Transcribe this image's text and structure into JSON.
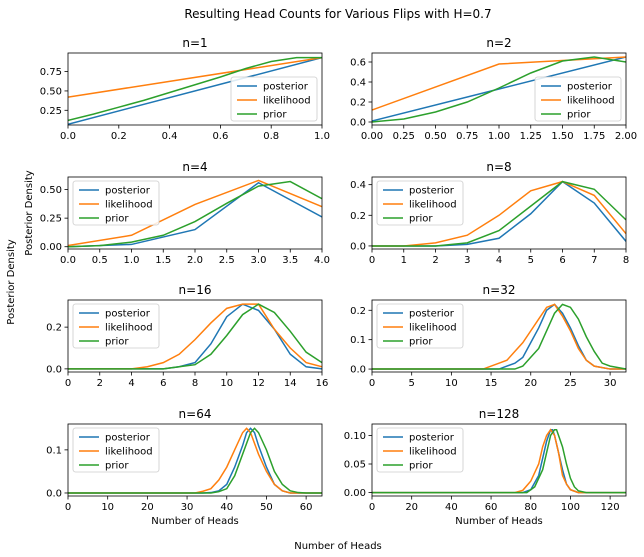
{
  "figure": {
    "suptitle": "Resulting Head Counts for Various Flips with H=0.7",
    "supxlabel": "Number of Heads",
    "supylabel": "Posterior Density"
  },
  "colors": {
    "posterior": "#1f77b4",
    "likelihood": "#ff7f0e",
    "prior": "#2ca02c"
  },
  "chart_data": [
    {
      "type": "line",
      "title": "n=1",
      "xlabel": "",
      "ylabel": "",
      "xlim": [
        0,
        1
      ],
      "ylim": [
        0.06,
        0.99
      ],
      "xticks": [
        0,
        0.2,
        0.4,
        0.6,
        0.8,
        1
      ],
      "xtick_labels": [
        "0.0",
        "0.2",
        "0.4",
        "0.6",
        "0.8",
        "1.0"
      ],
      "yticks": [
        0.25,
        0.5,
        0.75
      ],
      "ytick_labels": [
        "0.25",
        "0.50",
        "0.75"
      ],
      "legend": "lower-right",
      "series": [
        {
          "name": "posterior",
          "x": [
            0,
            1
          ],
          "y": [
            0.07,
            0.93
          ]
        },
        {
          "name": "likelihood",
          "x": [
            0,
            1
          ],
          "y": [
            0.42,
            0.93
          ]
        },
        {
          "name": "prior",
          "x": [
            0,
            0.1,
            0.2,
            0.3,
            0.4,
            0.5,
            0.6,
            0.7,
            0.8,
            0.9,
            1
          ],
          "y": [
            0.12,
            0.2,
            0.29,
            0.38,
            0.48,
            0.58,
            0.68,
            0.79,
            0.88,
            0.93,
            0.93
          ]
        }
      ]
    },
    {
      "type": "line",
      "title": "n=2",
      "xlabel": "",
      "ylabel": "",
      "xlim": [
        0,
        2
      ],
      "ylim": [
        -0.03,
        0.69
      ],
      "xticks": [
        0,
        0.25,
        0.5,
        0.75,
        1,
        1.25,
        1.5,
        1.75,
        2
      ],
      "xtick_labels": [
        "0.00",
        "0.25",
        "0.50",
        "0.75",
        "1.00",
        "1.25",
        "1.50",
        "1.75",
        "2.00"
      ],
      "yticks": [
        0,
        0.2,
        0.4,
        0.6
      ],
      "ytick_labels": [
        "0.0",
        "0.2",
        "0.4",
        "0.6"
      ],
      "legend": "lower-right",
      "series": [
        {
          "name": "posterior",
          "x": [
            0,
            1,
            2
          ],
          "y": [
            0.01,
            0.33,
            0.65
          ]
        },
        {
          "name": "likelihood",
          "x": [
            0,
            1,
            2
          ],
          "y": [
            0.12,
            0.58,
            0.65
          ]
        },
        {
          "name": "prior",
          "x": [
            0,
            0.25,
            0.5,
            0.75,
            1,
            1.25,
            1.5,
            1.75,
            2
          ],
          "y": [
            0.0,
            0.03,
            0.1,
            0.2,
            0.34,
            0.49,
            0.61,
            0.65,
            0.6
          ]
        }
      ]
    },
    {
      "type": "line",
      "title": "n=4",
      "xlabel": "",
      "ylabel": "Posterior Density",
      "xlim": [
        0,
        4
      ],
      "ylim": [
        -0.02,
        0.61
      ],
      "xticks": [
        0,
        0.5,
        1,
        1.5,
        2,
        2.5,
        3,
        3.5,
        4
      ],
      "xtick_labels": [
        "0.0",
        "0.5",
        "1.0",
        "1.5",
        "2.0",
        "2.5",
        "3.0",
        "3.5",
        "4.0"
      ],
      "yticks": [
        0,
        0.25,
        0.5
      ],
      "ytick_labels": [
        "0.00",
        "0.25",
        "0.50"
      ],
      "legend": "upper-left",
      "series": [
        {
          "name": "posterior",
          "x": [
            0,
            1,
            2,
            3,
            4
          ],
          "y": [
            0.0,
            0.02,
            0.15,
            0.56,
            0.26
          ]
        },
        {
          "name": "likelihood",
          "x": [
            0,
            1,
            2,
            3,
            4
          ],
          "y": [
            0.01,
            0.1,
            0.37,
            0.58,
            0.35
          ]
        },
        {
          "name": "prior",
          "x": [
            0,
            0.5,
            1,
            1.5,
            2,
            2.5,
            3,
            3.5,
            4
          ],
          "y": [
            0.0,
            0.01,
            0.04,
            0.1,
            0.22,
            0.38,
            0.53,
            0.57,
            0.42
          ]
        }
      ]
    },
    {
      "type": "line",
      "title": "n=8",
      "xlabel": "",
      "ylabel": "",
      "xlim": [
        0,
        8
      ],
      "ylim": [
        -0.02,
        0.45
      ],
      "xticks": [
        0,
        1,
        2,
        3,
        4,
        5,
        6,
        7,
        8
      ],
      "xtick_labels": [
        "0",
        "1",
        "2",
        "3",
        "4",
        "5",
        "6",
        "7",
        "8"
      ],
      "yticks": [
        0,
        0.2,
        0.4
      ],
      "ytick_labels": [
        "0.0",
        "0.2",
        "0.4"
      ],
      "legend": "upper-left",
      "series": [
        {
          "name": "posterior",
          "x": [
            0,
            1,
            2,
            3,
            4,
            5,
            6,
            7,
            8
          ],
          "y": [
            0,
            0,
            0,
            0.01,
            0.05,
            0.21,
            0.42,
            0.28,
            0.03
          ]
        },
        {
          "name": "likelihood",
          "x": [
            0,
            1,
            2,
            3,
            4,
            5,
            6,
            7,
            8
          ],
          "y": [
            0,
            0,
            0.02,
            0.07,
            0.2,
            0.36,
            0.42,
            0.33,
            0.08
          ]
        },
        {
          "name": "prior",
          "x": [
            0,
            1,
            2,
            3,
            4,
            5,
            6,
            7,
            8
          ],
          "y": [
            0,
            0,
            0,
            0.02,
            0.1,
            0.26,
            0.42,
            0.37,
            0.17
          ]
        }
      ]
    },
    {
      "type": "line",
      "title": "n=16",
      "xlabel": "",
      "ylabel": "",
      "xlim": [
        0,
        16
      ],
      "ylim": [
        -0.015,
        0.33
      ],
      "xticks": [
        0,
        2,
        4,
        6,
        8,
        10,
        12,
        14,
        16
      ],
      "xtick_labels": [
        "0",
        "2",
        "4",
        "6",
        "8",
        "10",
        "12",
        "14",
        "16"
      ],
      "yticks": [
        0,
        0.2
      ],
      "ytick_labels": [
        "0.0",
        "0.2"
      ],
      "legend": "upper-left",
      "series": [
        {
          "name": "posterior",
          "x": [
            0,
            4,
            5,
            6,
            7,
            8,
            9,
            10,
            11,
            12,
            13,
            14,
            15,
            16
          ],
          "y": [
            0,
            0,
            0,
            0,
            0.01,
            0.03,
            0.12,
            0.25,
            0.31,
            0.28,
            0.19,
            0.07,
            0.01,
            0
          ]
        },
        {
          "name": "likelihood",
          "x": [
            0,
            4,
            5,
            6,
            7,
            8,
            9,
            10,
            11,
            12,
            13,
            14,
            15,
            16
          ],
          "y": [
            0,
            0,
            0.01,
            0.03,
            0.07,
            0.14,
            0.22,
            0.29,
            0.31,
            0.31,
            0.19,
            0.1,
            0.03,
            0.01
          ]
        },
        {
          "name": "prior",
          "x": [
            0,
            4,
            5,
            6,
            7,
            8,
            9,
            10,
            11,
            12,
            13,
            14,
            15,
            16
          ],
          "y": [
            0,
            0,
            0,
            0,
            0.01,
            0.02,
            0.07,
            0.16,
            0.26,
            0.31,
            0.27,
            0.18,
            0.08,
            0.03
          ]
        }
      ]
    },
    {
      "type": "line",
      "title": "n=32",
      "xlabel": "",
      "ylabel": "",
      "xlim": [
        0,
        32
      ],
      "ylim": [
        -0.01,
        0.235
      ],
      "xticks": [
        0,
        5,
        10,
        15,
        20,
        25,
        30
      ],
      "xtick_labels": [
        "0",
        "5",
        "10",
        "15",
        "20",
        "25",
        "30"
      ],
      "yticks": [
        0,
        0.1,
        0.2
      ],
      "ytick_labels": [
        "0.0",
        "0.1",
        "0.2"
      ],
      "legend": "upper-left",
      "series": [
        {
          "name": "posterior",
          "x": [
            0,
            14,
            16,
            18,
            19,
            20,
            21,
            22,
            23,
            24,
            25,
            26,
            27,
            28,
            30,
            32
          ],
          "y": [
            0,
            0,
            0,
            0.02,
            0.04,
            0.09,
            0.14,
            0.2,
            0.22,
            0.19,
            0.14,
            0.08,
            0.03,
            0.01,
            0,
            0
          ]
        },
        {
          "name": "likelihood",
          "x": [
            0,
            14,
            16,
            17,
            18,
            19,
            20,
            21,
            22,
            23,
            24,
            25,
            26,
            27,
            28,
            30,
            32
          ],
          "y": [
            0,
            0,
            0.02,
            0.03,
            0.06,
            0.09,
            0.13,
            0.17,
            0.21,
            0.22,
            0.18,
            0.13,
            0.07,
            0.03,
            0.01,
            0,
            0
          ]
        },
        {
          "name": "prior",
          "x": [
            0,
            16,
            18,
            19,
            20,
            21,
            22,
            23,
            24,
            25,
            26,
            27,
            28,
            29,
            30,
            32
          ],
          "y": [
            0,
            0,
            0,
            0.01,
            0.04,
            0.07,
            0.13,
            0.19,
            0.22,
            0.21,
            0.17,
            0.11,
            0.06,
            0.02,
            0.01,
            0
          ]
        }
      ]
    },
    {
      "type": "line",
      "title": "n=64",
      "xlabel": "Number of Heads",
      "ylabel": "",
      "xlim": [
        0,
        64
      ],
      "ylim": [
        -0.007,
        0.16
      ],
      "xticks": [
        0,
        10,
        20,
        30,
        40,
        50,
        60
      ],
      "xtick_labels": [
        "0",
        "10",
        "20",
        "30",
        "40",
        "50",
        "60"
      ],
      "yticks": [
        0,
        0.1
      ],
      "ytick_labels": [
        "0.0",
        "0.1"
      ],
      "legend": "upper-left",
      "series": [
        {
          "name": "posterior",
          "x": [
            0,
            34,
            36,
            38,
            40,
            42,
            44,
            45,
            46,
            47,
            48,
            50,
            52,
            54,
            56,
            64
          ],
          "y": [
            0,
            0,
            0.001,
            0.005,
            0.02,
            0.06,
            0.11,
            0.14,
            0.15,
            0.14,
            0.11,
            0.06,
            0.02,
            0.005,
            0,
            0
          ]
        },
        {
          "name": "likelihood",
          "x": [
            0,
            32,
            34,
            36,
            38,
            40,
            42,
            44,
            45,
            46,
            48,
            50,
            52,
            54,
            56,
            64
          ],
          "y": [
            0,
            0,
            0.004,
            0.01,
            0.03,
            0.06,
            0.1,
            0.14,
            0.15,
            0.14,
            0.09,
            0.05,
            0.02,
            0.005,
            0,
            0
          ]
        },
        {
          "name": "prior",
          "x": [
            0,
            36,
            38,
            40,
            42,
            44,
            46,
            47,
            48,
            50,
            52,
            54,
            56,
            58,
            60,
            64
          ],
          "y": [
            0,
            0,
            0.003,
            0.01,
            0.04,
            0.09,
            0.14,
            0.15,
            0.14,
            0.1,
            0.05,
            0.02,
            0.005,
            0.001,
            0,
            0
          ]
        }
      ]
    },
    {
      "type": "line",
      "title": "n=128",
      "xlabel": "Number of Heads",
      "ylabel": "",
      "xlim": [
        0,
        128
      ],
      "ylim": [
        -0.006,
        0.12
      ],
      "xticks": [
        0,
        20,
        40,
        60,
        80,
        100,
        120
      ],
      "xtick_labels": [
        "0",
        "20",
        "40",
        "60",
        "80",
        "100",
        "120"
      ],
      "yticks": [
        0,
        0.05,
        0.1
      ],
      "ytick_labels": [
        "0.00",
        "0.05",
        "0.10"
      ],
      "legend": "upper-left",
      "series": [
        {
          "name": "posterior",
          "x": [
            0,
            76,
            80,
            84,
            86,
            88,
            90,
            91,
            92,
            94,
            96,
            98,
            100,
            104,
            128
          ],
          "y": [
            0,
            0,
            0.005,
            0.03,
            0.06,
            0.09,
            0.11,
            0.11,
            0.1,
            0.07,
            0.04,
            0.015,
            0.005,
            0,
            0
          ]
        },
        {
          "name": "likelihood",
          "x": [
            0,
            72,
            76,
            80,
            84,
            86,
            88,
            90,
            92,
            94,
            96,
            98,
            100,
            104,
            128
          ],
          "y": [
            0,
            0,
            0.004,
            0.02,
            0.05,
            0.08,
            0.1,
            0.11,
            0.1,
            0.07,
            0.03,
            0.015,
            0.005,
            0,
            0
          ]
        },
        {
          "name": "prior",
          "x": [
            0,
            78,
            82,
            86,
            88,
            90,
            92,
            93,
            94,
            96,
            98,
            100,
            102,
            104,
            108,
            128
          ],
          "y": [
            0,
            0,
            0.01,
            0.04,
            0.07,
            0.1,
            0.11,
            0.11,
            0.1,
            0.08,
            0.05,
            0.025,
            0.01,
            0.003,
            0,
            0
          ]
        }
      ]
    }
  ]
}
